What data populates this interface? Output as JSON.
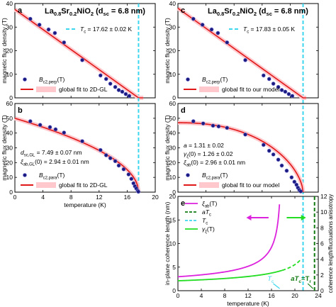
{
  "colors": {
    "fit": "#e01818",
    "band": "#ffc8cc",
    "tc_line": "#3cd6ee",
    "point": "#1a1a80",
    "magenta": "#dd22dd",
    "green": "#22dd22",
    "dkgreen": "#117a11",
    "axis": "#000000"
  },
  "labels": {
    "ylabel_field": "magnetic flux density (T)",
    "xlabel_temp": "temperature (K)",
    "ylabel_xi": "in-plane coherence length (nm)",
    "ylabel_right": "coherence length/fluctuations anisotropy",
    "legend_model": "global fit to our model",
    "legend_gl": "global fit to 2D-GL"
  },
  "chart_data": [
    {
      "panel": "a",
      "type": "scatter",
      "title": "La0.8Sr0.2NiO2 (dsc = 6.8 nm)",
      "title_parts": {
        "main": "La",
        "s1": "0.8",
        "m2": "Sr",
        "s2": "0.2",
        "m3": "NiO",
        "s3": "2",
        "m4": " (d",
        "s4": "sc",
        "m5": " = 6.8 nm)"
      },
      "tc_text": "Tc = 17.62 ± 0.02 K",
      "tc_parts": {
        "a": "T",
        "b": "c",
        "c": " = 17.62 ± 0.02 K"
      },
      "legend_points_parts": {
        "a": "B",
        "b": "c2,perp",
        "c": "(T)"
      },
      "legend_fit": "global fit to 2D-GL",
      "xlim": [
        0,
        20
      ],
      "ylim": [
        0,
        40
      ],
      "tc": 17.62,
      "points": [
        [
          2.2,
          33.5
        ],
        [
          3.5,
          31
        ],
        [
          4.8,
          29
        ],
        [
          5.7,
          27.5
        ],
        [
          7.0,
          23.5
        ],
        [
          9.6,
          16
        ],
        [
          12.2,
          9.5
        ],
        [
          13.0,
          8
        ],
        [
          13.6,
          6
        ],
        [
          14.3,
          4.6
        ],
        [
          14.8,
          3.3
        ],
        [
          15.3,
          2.6
        ],
        [
          15.8,
          1.6
        ],
        [
          16.3,
          0.8
        ]
      ],
      "fit": [
        [
          0,
          37.5
        ],
        [
          17.62,
          0
        ],
        [
          18.3,
          0
        ]
      ]
    },
    {
      "panel": "b",
      "type": "scatter",
      "legend_points_parts": {
        "a": "B",
        "b": "c2,para",
        "c": "(T)"
      },
      "legend_fit": "global fit to 2D-GL",
      "ann1_parts": {
        "a": "d",
        "b": "sc,GL",
        "c": " = 7.49 ± 0.07 nm"
      },
      "ann2_parts": {
        "a": "ξ",
        "b": "ab,GL",
        "c": "(0) = 2.94 ± 0.01 nm"
      },
      "xlim": [
        0,
        20
      ],
      "ylim": [
        0,
        60
      ],
      "tc": 17.62,
      "points": [
        [
          2.2,
          48
        ],
        [
          3.6,
          45.5
        ],
        [
          5.0,
          44
        ],
        [
          5.8,
          42.5
        ],
        [
          7.0,
          40.3
        ],
        [
          9.6,
          34.5
        ],
        [
          12.2,
          28.5
        ],
        [
          13.0,
          25
        ],
        [
          13.6,
          23
        ],
        [
          14.3,
          21
        ],
        [
          14.8,
          18
        ],
        [
          15.5,
          15.5
        ],
        [
          16.2,
          12
        ],
        [
          16.6,
          9
        ],
        [
          16.9,
          6
        ],
        [
          17.1,
          4
        ],
        [
          17.3,
          2.5
        ],
        [
          17.5,
          1
        ],
        [
          17.6,
          0.3
        ]
      ],
      "fit_fn": "50*sqrt(1-T/17.62)"
    },
    {
      "panel": "c",
      "type": "scatter",
      "title": "La0.8Sr0.2NiO2 (dsc = 6.8 nm)",
      "title_parts": {
        "main": "La",
        "s1": "0.8",
        "m2": "Sr",
        "s2": "0.2",
        "m3": "NiO",
        "s3": "2",
        "m4": " (d",
        "s4": "sc",
        "m5": " = 6.8 nm)"
      },
      "tc_text": "Tc = 17.83 ± 0.05 K",
      "tc_parts": {
        "a": "T",
        "b": "c",
        "c": " = 17.83 ± 0.05 K"
      },
      "legend_points_parts": {
        "a": "B",
        "b": "c2,perp",
        "c": "(T)"
      },
      "legend_fit": "global fit to our model",
      "xlim": [
        0,
        20
      ],
      "ylim": [
        0,
        40
      ],
      "tc": 17.83,
      "points": [
        [
          2.2,
          33.5
        ],
        [
          3.5,
          31
        ],
        [
          4.8,
          29
        ],
        [
          5.7,
          27.5
        ],
        [
          7.0,
          23.5
        ],
        [
          9.6,
          16
        ],
        [
          12.2,
          9.5
        ],
        [
          13.0,
          8
        ],
        [
          13.6,
          6
        ],
        [
          14.3,
          4.6
        ],
        [
          14.8,
          3.3
        ],
        [
          15.3,
          2.6
        ],
        [
          15.8,
          1.6
        ],
        [
          16.3,
          0.8
        ]
      ],
      "fit": [
        [
          0,
          38
        ],
        [
          17.83,
          0
        ],
        [
          18.3,
          0
        ]
      ]
    },
    {
      "panel": "d",
      "type": "scatter",
      "legend_points_parts": {
        "a": "B",
        "b": "c2,para",
        "c": "(T)"
      },
      "legend_fit": "global fit to our model",
      "ann1_parts": {
        "a": "a",
        "b": "",
        "c": " = 1.31 ± 0.02"
      },
      "ann2_parts": {
        "a": "γ",
        "b": "ξ",
        "c": "(0) = 1.26 ± 0.02"
      },
      "ann3_parts": {
        "a": "ξ",
        "b": "ab",
        "c": "(0) = 2.96 ± 0.01 nm"
      },
      "xlim": [
        0,
        20
      ],
      "ylim": [
        0,
        60
      ],
      "tc": 17.83,
      "points": [
        [
          2.2,
          48
        ],
        [
          3.6,
          46.5
        ],
        [
          5.0,
          45
        ],
        [
          5.8,
          44.5
        ],
        [
          7.0,
          43.5
        ],
        [
          9.6,
          39
        ],
        [
          12.2,
          32
        ],
        [
          13.0,
          28
        ],
        [
          13.6,
          25.5
        ],
        [
          14.3,
          22
        ],
        [
          14.8,
          18
        ],
        [
          15.5,
          14.5
        ],
        [
          16.2,
          10
        ],
        [
          16.6,
          7
        ],
        [
          16.9,
          5
        ],
        [
          17.1,
          3
        ],
        [
          17.3,
          1.5
        ],
        [
          17.5,
          0.5
        ]
      ],
      "fit_fn": "47*(1-(T/17.83)^2.3)^0.6"
    },
    {
      "panel": "e",
      "type": "line",
      "xlim": [
        0,
        24
      ],
      "ylim": [
        0,
        20
      ],
      "y2lim": [
        0,
        12
      ],
      "legend": [
        {
          "parts": {
            "a": "ξ",
            "b": "ab",
            "c": "(T)"
          }
        },
        {
          "parts": {
            "a": "aT",
            "b": "c",
            "c": ""
          }
        },
        {
          "parts": {
            "a": "T",
            "b": "c",
            "c": ""
          }
        },
        {
          "parts": {
            "a": "γ",
            "b": "ξ",
            "c": "(T)"
          }
        }
      ],
      "tc": 17.83,
      "aTc": 23.36,
      "tc_tag_parts": {
        "a": "T",
        "b": "c"
      },
      "atc_tag_parts": {
        "a": "aT",
        "b": "c",
        "c": "=T",
        "d": "r"
      },
      "xi_ab": "2.96/sqrt(1-T/17.83)",
      "gamma": "1.26/sqrt(1-T/23.36)"
    }
  ],
  "ticks": {
    "x20": [
      "0",
      "4",
      "8",
      "12",
      "16",
      "20"
    ],
    "x20_vals": [
      0,
      4,
      8,
      12,
      16,
      20
    ],
    "y40": [
      "0",
      "10",
      "20",
      "30",
      "40"
    ],
    "y40_vals": [
      0,
      10,
      20,
      30,
      40
    ],
    "y60": [
      "0",
      "10",
      "20",
      "30",
      "40",
      "50",
      "60"
    ],
    "y60_vals": [
      0,
      10,
      20,
      30,
      40,
      50,
      60
    ],
    "x24": [
      "0",
      "4",
      "8",
      "12",
      "16",
      "20",
      "24"
    ],
    "x24_vals": [
      0,
      4,
      8,
      12,
      16,
      20,
      24
    ],
    "y20": [
      "0",
      "5",
      "10",
      "15",
      "20"
    ],
    "y20_vals": [
      0,
      5,
      10,
      15,
      20
    ],
    "y12": [
      "0",
      "2",
      "4",
      "6",
      "8",
      "10",
      "12"
    ],
    "y12_vals": [
      0,
      2,
      4,
      6,
      8,
      10,
      12
    ]
  }
}
